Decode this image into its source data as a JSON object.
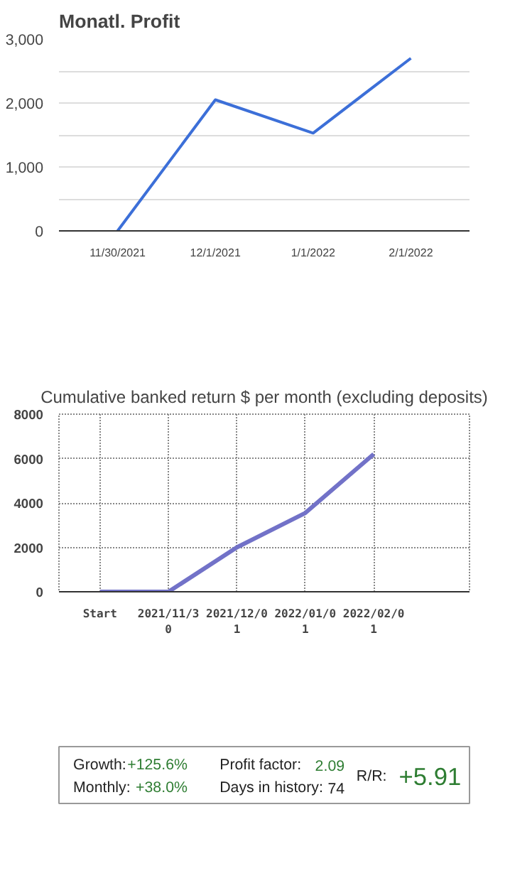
{
  "chart_data": [
    {
      "type": "line",
      "title": "Monatl. Profit",
      "categories": [
        "11/30/2021",
        "12/1/2021",
        "1/1/2022",
        "2/1/2022"
      ],
      "series": [
        {
          "color": "#3c6fd8",
          "values": [
            0,
            2050,
            1530,
            2700
          ]
        }
      ],
      "ylim": [
        0,
        3000
      ],
      "yticks": [
        0,
        {
          "value": 500,
          "label": null
        },
        {
          "value": 1000,
          "label": "1,000"
        },
        {
          "value": 1500,
          "label": null
        },
        {
          "value": 2000,
          "label": "2,000"
        },
        {
          "value": 2500,
          "label": null
        },
        {
          "value": 3000,
          "label": "3,000"
        }
      ],
      "grid": "y"
    },
    {
      "type": "line",
      "title": "Cumulative banked return $ per month (excluding deposits)",
      "categories": [
        "Start",
        "2021/11/30",
        "2021/12/01",
        "2022/01/01",
        "2022/02/01"
      ],
      "series": [
        {
          "color": "#7272c8",
          "values": [
            0,
            0,
            2000,
            3550,
            6200
          ]
        }
      ],
      "ylim": [
        0,
        8000
      ],
      "yticks": [
        0,
        2000,
        4000,
        6000,
        8000
      ],
      "grid": true,
      "line_style": "solid"
    },
    {
      "type": "other",
      "annotations": [
        "Growth:",
        "+125.6%",
        "Monthly:",
        "+38.0%",
        "Profit factor:",
        "2.09",
        "Days in history:",
        "74",
        "R/R:",
        "+5.91"
      ]
    }
  ]
}
